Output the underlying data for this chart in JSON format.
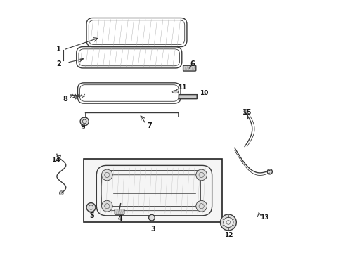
{
  "background_color": "#ffffff",
  "line_color": "#3a3a3a",
  "text_color": "#1a1a1a",
  "fig_width": 4.89,
  "fig_height": 3.6,
  "dpi": 100
}
